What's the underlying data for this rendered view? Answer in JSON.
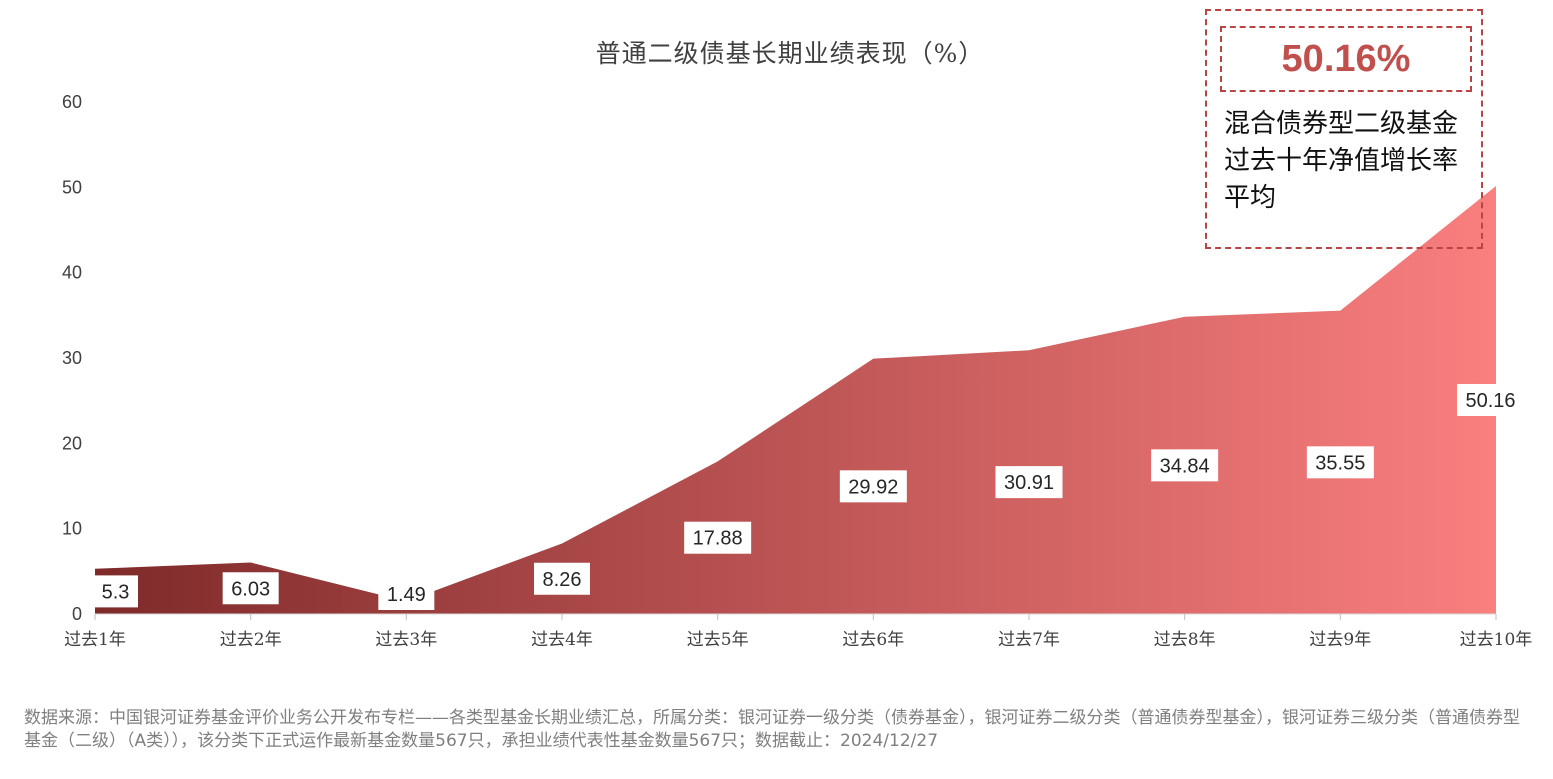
{
  "chart_data": {
    "type": "area",
    "title": "普通二级债基长期业绩表现（%）",
    "categories": [
      "过去1年",
      "过去2年",
      "过去3年",
      "过去4年",
      "过去5年",
      "过去6年",
      "过去7年",
      "过去8年",
      "过去9年",
      "过去10年"
    ],
    "values": [
      5.3,
      6.03,
      1.49,
      8.26,
      17.88,
      29.92,
      30.91,
      34.84,
      35.55,
      50.16
    ],
    "value_labels": [
      "5.3",
      "6.03",
      "1.49",
      "8.26",
      "17.88",
      "29.92",
      "30.91",
      "34.84",
      "35.55",
      "50.16"
    ],
    "yticks": [
      "0",
      "10",
      "20",
      "30",
      "40",
      "50",
      "60"
    ],
    "ylim": [
      0,
      60
    ],
    "grid": false,
    "gradient": [
      "#7f2a2a",
      "#fa7f7f"
    ]
  },
  "callout": {
    "value": "50.16%",
    "text": "混合债券型二级基金过去十年净值增长率平均",
    "color": "#c0504d"
  },
  "footnote": "数据来源：中国银河证券基金评价业务公开发布专栏——各类型基金长期业绩汇总，所属分类：银河证券一级分类（债券基金），银河证券二级分类（普通债券型基金），银河证券三级分类（普通债券型基金（二级）（A类）），该分类下正式运作最新基金数量567只，承担业绩代表性基金数量567只；数据截止：2024/12/27"
}
